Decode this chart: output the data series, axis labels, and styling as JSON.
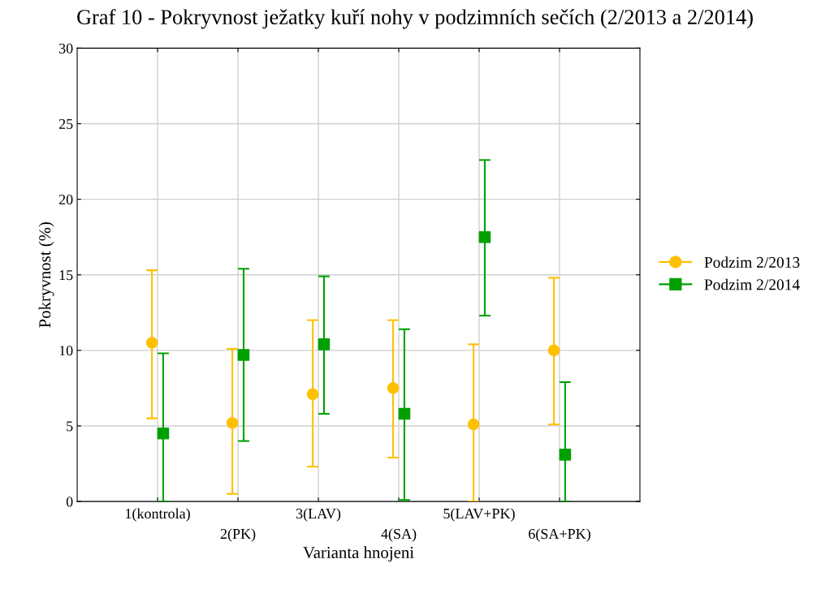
{
  "chart_data": {
    "type": "scatter",
    "title": "Graf 10 - Pokryvnost ježatky kuří nohy v podzimních sečích (2/2013 a 2/2014)",
    "xlabel": "Varianta hnojeni",
    "ylabel": "Pokryvnost (%)",
    "categories": [
      "1(kontrola)",
      "2(PK)",
      "3(LAV)",
      "4(SA)",
      "5(LAV+PK)",
      "6(SA+PK)"
    ],
    "series": [
      {
        "name": "Podzim 2/2013",
        "color": "#ffc000",
        "marker": "circle",
        "values": [
          10.5,
          5.2,
          7.1,
          7.5,
          5.1,
          10.0
        ],
        "errors": [
          [
            5.5,
            15.3
          ],
          [
            0.5,
            10.1
          ],
          [
            2.3,
            12.0
          ],
          [
            2.9,
            12.0
          ],
          [
            0,
            10.4
          ],
          [
            5.1,
            14.8
          ]
        ]
      },
      {
        "name": "Podzim 2/2014",
        "color": "#00a000",
        "marker": "square",
        "values": [
          4.5,
          9.7,
          10.4,
          5.8,
          17.5,
          3.1
        ],
        "errors": [
          [
            0,
            9.8
          ],
          [
            4.0,
            15.4
          ],
          [
            5.8,
            14.9
          ],
          [
            0.1,
            11.4
          ],
          [
            12.3,
            22.6
          ],
          [
            0,
            7.9
          ]
        ]
      }
    ],
    "ylim": [
      0,
      30
    ],
    "yticks": [
      0,
      5,
      10,
      15,
      20,
      25,
      30
    ],
    "grid": true,
    "legend": "right"
  }
}
